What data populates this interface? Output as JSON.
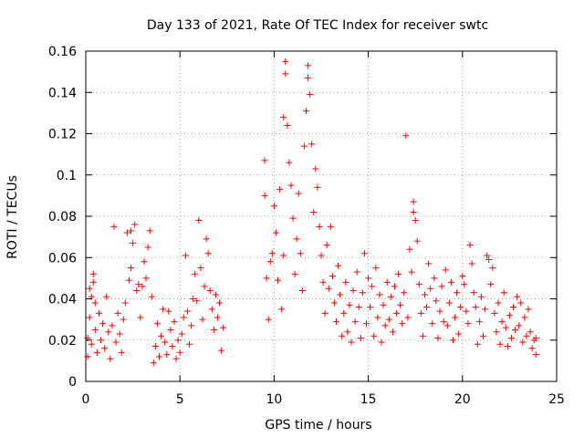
{
  "chart_data": {
    "type": "scatter",
    "title": "Day 133 of 2021, Rate Of TEC Index for receiver swtc",
    "xlabel": "GPS time / hours",
    "ylabel": "ROTI / TECUs",
    "xlim": [
      0,
      25
    ],
    "ylim": [
      0,
      0.16
    ],
    "xticks": [
      0,
      5,
      10,
      15,
      20,
      25
    ],
    "xtick_labels": [
      "0",
      "5",
      "10",
      "15",
      "20",
      "25"
    ],
    "yticks": [
      0,
      0.02,
      0.04,
      0.06,
      0.08,
      0.1,
      0.12,
      0.14,
      0.16
    ],
    "ytick_labels": [
      "0",
      "0.02",
      "0.04",
      "0.06",
      "0.08",
      "0.1",
      "0.12",
      "0.14",
      "0.16"
    ],
    "grid": true,
    "marker": "+",
    "color": "#ff0000",
    "series": [
      {
        "points": [
          [
            0.1,
            0.012
          ],
          [
            0.1,
            0.021
          ],
          [
            0.2,
            0.045
          ],
          [
            0.2,
            0.031
          ],
          [
            0.3,
            0.041
          ],
          [
            0.3,
            0.018
          ],
          [
            0.4,
            0.048
          ],
          [
            0.4,
            0.052
          ],
          [
            0.5,
            0.038
          ],
          [
            0.5,
            0.025
          ],
          [
            0.6,
            0.014
          ],
          [
            0.7,
            0.033
          ],
          [
            0.8,
            0.02
          ],
          [
            0.9,
            0.028
          ],
          [
            1.0,
            0.016
          ],
          [
            1.1,
            0.041
          ],
          [
            1.2,
            0.024
          ],
          [
            1.3,
            0.011
          ],
          [
            1.4,
            0.027
          ],
          [
            1.5,
            0.075
          ],
          [
            1.6,
            0.019
          ],
          [
            1.7,
            0.033
          ],
          [
            1.8,
            0.023
          ],
          [
            1.9,
            0.014
          ],
          [
            2.0,
            0.03
          ],
          [
            2.1,
            0.038
          ],
          [
            2.2,
            0.072
          ],
          [
            2.3,
            0.049
          ],
          [
            2.4,
            0.073
          ],
          [
            2.4,
            0.055
          ],
          [
            2.5,
            0.067
          ],
          [
            2.6,
            0.076
          ],
          [
            2.7,
            0.044
          ],
          [
            2.8,
            0.047
          ],
          [
            2.9,
            0.031
          ],
          [
            3.0,
            0.046
          ],
          [
            3.1,
            0.058
          ],
          [
            3.2,
            0.05
          ],
          [
            3.3,
            0.065
          ],
          [
            3.4,
            0.073
          ],
          [
            3.5,
            0.041
          ],
          [
            3.6,
            0.009
          ],
          [
            3.7,
            0.017
          ],
          [
            3.8,
            0.028
          ],
          [
            3.9,
            0.012
          ],
          [
            4.0,
            0.022
          ],
          [
            4.1,
            0.035
          ],
          [
            4.2,
            0.019
          ],
          [
            4.3,
            0.013
          ],
          [
            4.4,
            0.034
          ],
          [
            4.5,
            0.025
          ],
          [
            4.6,
            0.017
          ],
          [
            4.7,
            0.029
          ],
          [
            4.8,
            0.011
          ],
          [
            4.9,
            0.02
          ],
          [
            5.0,
            0.014
          ],
          [
            5.1,
            0.023
          ],
          [
            5.2,
            0.031
          ],
          [
            5.3,
            0.061
          ],
          [
            5.4,
            0.034
          ],
          [
            5.5,
            0.018
          ],
          [
            5.6,
            0.027
          ],
          [
            5.7,
            0.04
          ],
          [
            5.8,
            0.052
          ],
          [
            5.9,
            0.039
          ],
          [
            6.0,
            0.078
          ],
          [
            6.1,
            0.055
          ],
          [
            6.2,
            0.03
          ],
          [
            6.3,
            0.046
          ],
          [
            6.4,
            0.069
          ],
          [
            6.5,
            0.062
          ],
          [
            6.6,
            0.044
          ],
          [
            6.7,
            0.035
          ],
          [
            6.8,
            0.025
          ],
          [
            6.9,
            0.042
          ],
          [
            7.0,
            0.031
          ],
          [
            7.1,
            0.038
          ],
          [
            7.2,
            0.015
          ],
          [
            7.3,
            0.026
          ],
          [
            9.5,
            0.107
          ],
          [
            9.5,
            0.09
          ],
          [
            9.6,
            0.05
          ],
          [
            9.7,
            0.03
          ],
          [
            9.8,
            0.058
          ],
          [
            9.9,
            0.062
          ],
          [
            10.0,
            0.085
          ],
          [
            10.1,
            0.072
          ],
          [
            10.2,
            0.049
          ],
          [
            10.3,
            0.093
          ],
          [
            10.4,
            0.035
          ],
          [
            10.5,
            0.061
          ],
          [
            10.5,
            0.128
          ],
          [
            10.6,
            0.155
          ],
          [
            10.6,
            0.149
          ],
          [
            10.7,
            0.124
          ],
          [
            10.8,
            0.106
          ],
          [
            10.9,
            0.095
          ],
          [
            11.0,
            0.079
          ],
          [
            11.1,
            0.052
          ],
          [
            11.2,
            0.069
          ],
          [
            11.3,
            0.091
          ],
          [
            11.4,
            0.062
          ],
          [
            11.5,
            0.044
          ],
          [
            11.6,
            0.114
          ],
          [
            11.7,
            0.131
          ],
          [
            11.8,
            0.147
          ],
          [
            11.8,
            0.153
          ],
          [
            11.9,
            0.139
          ],
          [
            12.0,
            0.115
          ],
          [
            12.1,
            0.082
          ],
          [
            12.2,
            0.103
          ],
          [
            12.3,
            0.094
          ],
          [
            12.4,
            0.075
          ],
          [
            12.5,
            0.061
          ],
          [
            12.6,
            0.048
          ],
          [
            12.7,
            0.033
          ],
          [
            12.8,
            0.066
          ],
          [
            12.9,
            0.045
          ],
          [
            13.0,
            0.075
          ],
          [
            13.1,
            0.051
          ],
          [
            13.2,
            0.038
          ],
          [
            13.3,
            0.029
          ],
          [
            13.4,
            0.056
          ],
          [
            13.5,
            0.042
          ],
          [
            13.6,
            0.022
          ],
          [
            13.7,
            0.033
          ],
          [
            13.8,
            0.048
          ],
          [
            13.9,
            0.024
          ],
          [
            14.0,
            0.037
          ],
          [
            14.1,
            0.019
          ],
          [
            14.2,
            0.044
          ],
          [
            14.3,
            0.029
          ],
          [
            14.4,
            0.053
          ],
          [
            14.5,
            0.036
          ],
          [
            14.6,
            0.021
          ],
          [
            14.7,
            0.043
          ],
          [
            14.8,
            0.062
          ],
          [
            14.9,
            0.028
          ],
          [
            15.0,
            0.05
          ],
          [
            15.1,
            0.036
          ],
          [
            15.2,
            0.046
          ],
          [
            15.3,
            0.022
          ],
          [
            15.4,
            0.055
          ],
          [
            15.5,
            0.031
          ],
          [
            15.6,
            0.042
          ],
          [
            15.7,
            0.019
          ],
          [
            15.8,
            0.037
          ],
          [
            15.9,
            0.027
          ],
          [
            16.0,
            0.048
          ],
          [
            16.1,
            0.03
          ],
          [
            16.2,
            0.041
          ],
          [
            16.3,
            0.024
          ],
          [
            16.4,
            0.046
          ],
          [
            16.5,
            0.033
          ],
          [
            16.6,
            0.052
          ],
          [
            16.7,
            0.037
          ],
          [
            16.8,
            0.028
          ],
          [
            16.9,
            0.043
          ],
          [
            17.0,
            0.119
          ],
          [
            17.1,
            0.031
          ],
          [
            17.2,
            0.064
          ],
          [
            17.3,
            0.053
          ],
          [
            17.4,
            0.082
          ],
          [
            17.4,
            0.087
          ],
          [
            17.5,
            0.078
          ],
          [
            17.6,
            0.068
          ],
          [
            17.7,
            0.047
          ],
          [
            17.8,
            0.033
          ],
          [
            17.9,
            0.022
          ],
          [
            18.0,
            0.042
          ],
          [
            18.1,
            0.036
          ],
          [
            18.2,
            0.057
          ],
          [
            18.3,
            0.045
          ],
          [
            18.4,
            0.028
          ],
          [
            18.5,
            0.05
          ],
          [
            18.6,
            0.039
          ],
          [
            18.7,
            0.021
          ],
          [
            18.8,
            0.034
          ],
          [
            18.9,
            0.046
          ],
          [
            19.0,
            0.029
          ],
          [
            19.1,
            0.054
          ],
          [
            19.2,
            0.027
          ],
          [
            19.3,
            0.038
          ],
          [
            19.4,
            0.048
          ],
          [
            19.5,
            0.02
          ],
          [
            19.6,
            0.031
          ],
          [
            19.7,
            0.043
          ],
          [
            19.8,
            0.023
          ],
          [
            19.9,
            0.036
          ],
          [
            20.0,
            0.051
          ],
          [
            20.1,
            0.047
          ],
          [
            20.2,
            0.034
          ],
          [
            20.3,
            0.028
          ],
          [
            20.4,
            0.066
          ],
          [
            20.5,
            0.057
          ],
          [
            20.6,
            0.043
          ],
          [
            20.7,
            0.036
          ],
          [
            20.8,
            0.018
          ],
          [
            20.9,
            0.029
          ],
          [
            21.0,
            0.041
          ],
          [
            21.1,
            0.022
          ],
          [
            21.2,
            0.035
          ],
          [
            21.3,
            0.061
          ],
          [
            21.4,
            0.059
          ],
          [
            21.5,
            0.047
          ],
          [
            21.6,
            0.055
          ],
          [
            21.7,
            0.033
          ],
          [
            21.8,
            0.024
          ],
          [
            21.9,
            0.038
          ],
          [
            22.0,
            0.018
          ],
          [
            22.1,
            0.029
          ],
          [
            22.2,
            0.043
          ],
          [
            22.3,
            0.026
          ],
          [
            22.4,
            0.017
          ],
          [
            22.5,
            0.032
          ],
          [
            22.6,
            0.021
          ],
          [
            22.7,
            0.036
          ],
          [
            22.8,
            0.025
          ],
          [
            22.9,
            0.041
          ],
          [
            23.0,
            0.027
          ],
          [
            23.1,
            0.038
          ],
          [
            23.2,
            0.019
          ],
          [
            23.3,
            0.031
          ],
          [
            23.4,
            0.022
          ],
          [
            23.5,
            0.035
          ],
          [
            23.6,
            0.024
          ],
          [
            23.7,
            0.016
          ],
          [
            23.8,
            0.02
          ],
          [
            23.9,
            0.013
          ],
          [
            23.9,
            0.021
          ]
        ]
      }
    ]
  }
}
